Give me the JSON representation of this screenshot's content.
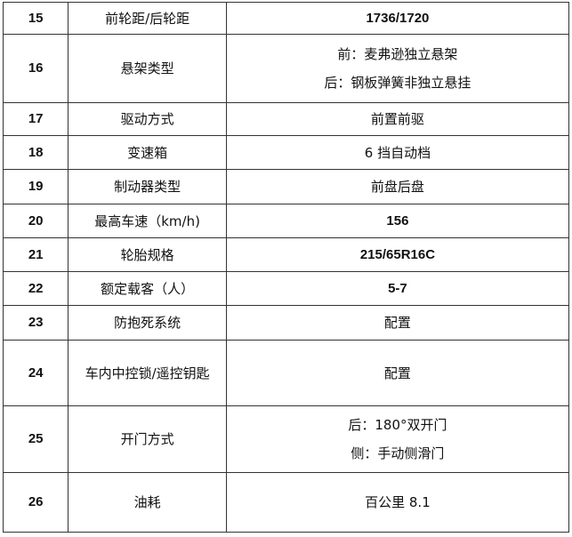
{
  "rows": [
    {
      "no": "15",
      "name": "前轮距/后轮距",
      "value": [
        "1736/1720"
      ]
    },
    {
      "no": "16",
      "name": "悬架类型",
      "value": [
        "前：麦弗逊独立悬架",
        "后：钢板弹簧非独立悬挂"
      ]
    },
    {
      "no": "17",
      "name": "驱动方式",
      "value": [
        "前置前驱"
      ]
    },
    {
      "no": "18",
      "name": "变速箱",
      "value": [
        "6 挡自动档"
      ]
    },
    {
      "no": "19",
      "name": "制动器类型",
      "value": [
        "前盘后盘"
      ]
    },
    {
      "no": "20",
      "name": "最高车速（km/h)",
      "value": [
        "156"
      ]
    },
    {
      "no": "21",
      "name": "轮胎规格",
      "value": [
        "215/65R16C"
      ]
    },
    {
      "no": "22",
      "name": "额定载客（人）",
      "value": [
        "5-7"
      ]
    },
    {
      "no": "23",
      "name": "防抱死系统",
      "value": [
        "配置"
      ]
    },
    {
      "no": "24",
      "name": "车内中控锁/遥控钥匙",
      "value": [
        "配置"
      ]
    },
    {
      "no": "25",
      "name": "开门方式",
      "value": [
        "后：180°双开门",
        "侧：手动侧滑门"
      ]
    },
    {
      "no": "26",
      "name": "油耗",
      "value": [
        "百公里 8.1"
      ]
    }
  ]
}
